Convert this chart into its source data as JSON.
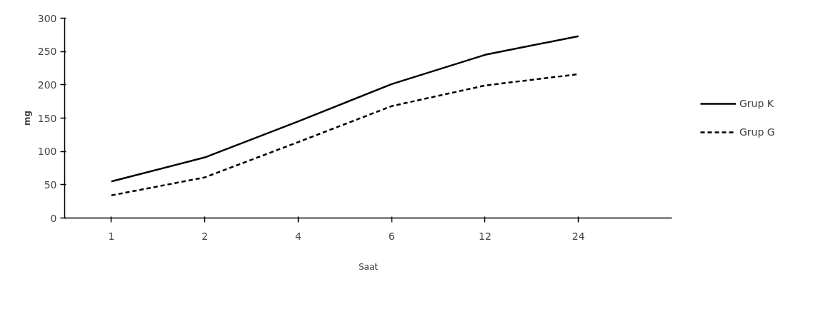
{
  "chart_data": {
    "type": "line",
    "xlabel": "Saat",
    "ylabel": "mg",
    "categories": [
      "1",
      "2",
      "4",
      "6",
      "12",
      "24"
    ],
    "series": [
      {
        "name": "Grup K",
        "color": "#000000",
        "line_style": "solid",
        "values": [
          55,
          91,
          145,
          201,
          245,
          273
        ]
      },
      {
        "name": "Grup G",
        "color": "#000000",
        "line_style": "dashed",
        "values": [
          34,
          61,
          114,
          168,
          199,
          216
        ]
      }
    ],
    "ylim": [
      0,
      300
    ],
    "yticks": [
      0,
      50,
      100,
      150,
      200,
      250,
      300
    ],
    "grid": false,
    "legend": "right",
    "marker": "none"
  }
}
